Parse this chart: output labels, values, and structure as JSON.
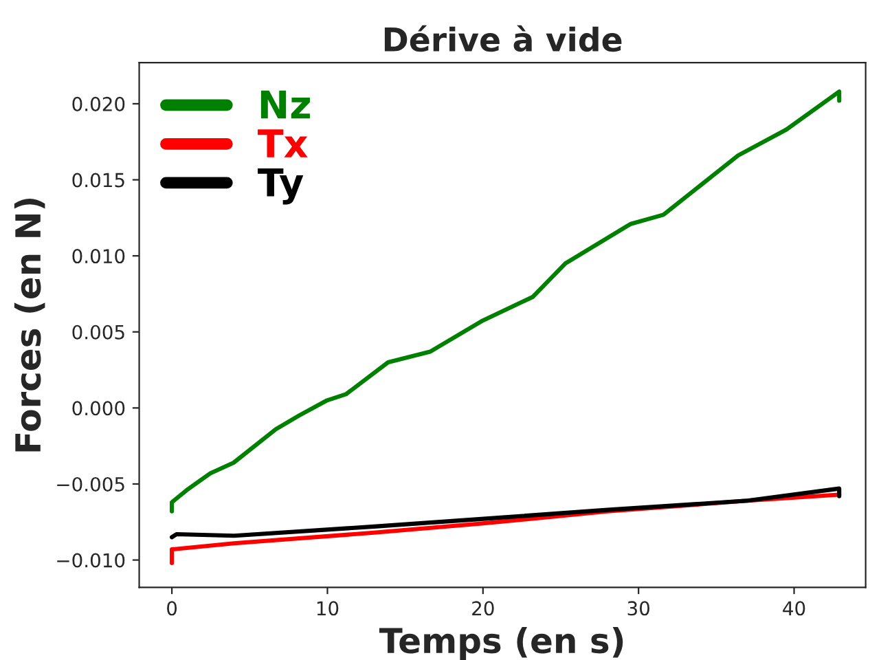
{
  "chart_data": {
    "type": "line",
    "title": "Dérive à vide",
    "xlabel": "Temps (en s)",
    "ylabel": "Forces (en N)",
    "xlim": [
      -2.1,
      44.6
    ],
    "ylim": [
      -0.0118,
      0.0227
    ],
    "xticks": [
      0,
      10,
      20,
      30,
      40
    ],
    "yticks": [
      {
        "value": -0.01,
        "label": "−0.010"
      },
      {
        "value": -0.005,
        "label": "−0.005"
      },
      {
        "value": 0,
        "label": "0.000"
      },
      {
        "value": 0.005,
        "label": "0.005"
      },
      {
        "value": 0.01,
        "label": "0.010"
      },
      {
        "value": 0.015,
        "label": "0.015"
      },
      {
        "value": 0.02,
        "label": "0.020"
      }
    ],
    "grid": false,
    "legend": "top left",
    "marker": "none",
    "line_style": "solid",
    "series": [
      {
        "name": "Nz",
        "color": "#008000",
        "x": [
          0,
          0,
          0.96,
          2.47,
          3.97,
          6.68,
          8.18,
          9.98,
          11.19,
          13.9,
          16.6,
          19.9,
          23.2,
          25.3,
          29.5,
          31.6,
          36.4,
          39.5,
          42.9,
          42.9
        ],
        "values": [
          -0.0068,
          -0.0062,
          -0.0054,
          -0.0043,
          -0.0036,
          -0.0014,
          -0.0005,
          0.0005,
          0.0009,
          0.003,
          0.0037,
          0.0057,
          0.0073,
          0.0095,
          0.0121,
          0.0127,
          0.0166,
          0.0183,
          0.0208,
          0.0202
        ]
      },
      {
        "name": "Tx",
        "color": "#ff0000",
        "x": [
          0,
          0,
          4,
          13,
          19.9,
          28,
          37,
          42.9
        ],
        "values": [
          -0.0102,
          -0.0093,
          -0.0089,
          -0.0082,
          -0.0076,
          -0.0068,
          -0.0061,
          -0.0057
        ]
      },
      {
        "name": "Ty",
        "color": "#000000",
        "x": [
          0,
          0.3,
          4,
          13,
          19.9,
          28,
          37,
          42.9,
          42.9
        ],
        "values": [
          -0.0085,
          -0.0083,
          -0.0084,
          -0.0078,
          -0.0073,
          -0.0067,
          -0.0061,
          -0.0053,
          -0.0058
        ]
      }
    ]
  }
}
